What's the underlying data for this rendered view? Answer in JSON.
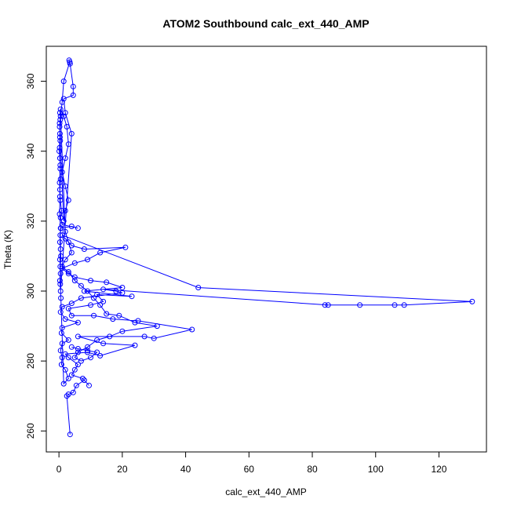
{
  "chart_data": {
    "type": "line",
    "title": "ATOM2 Southbound calc_ext_440_AMP",
    "xlabel": "calc_ext_440_AMP",
    "ylabel": "Theta (K)",
    "xlim": [
      -4,
      135
    ],
    "ylim": [
      254,
      370
    ],
    "grid": false,
    "legend": "none",
    "marker": "open-circle",
    "color": "#0000ff",
    "xticks": [
      0,
      20,
      40,
      60,
      80,
      100,
      120
    ],
    "yticks": [
      260,
      280,
      300,
      320,
      340,
      360
    ],
    "series": [
      {
        "points": [
          [
            3.5,
            259
          ],
          [
            2.5,
            270
          ],
          [
            3,
            270.5
          ],
          [
            4.5,
            271
          ],
          [
            5.5,
            273
          ],
          [
            8,
            274.5
          ],
          [
            9.5,
            273
          ],
          [
            7.5,
            275
          ],
          [
            4,
            276
          ],
          [
            5,
            277.5
          ],
          [
            6,
            279
          ],
          [
            3,
            281
          ],
          [
            2,
            282
          ],
          [
            9,
            282.5
          ],
          [
            13,
            281.5
          ],
          [
            24,
            284.5
          ],
          [
            14,
            285
          ],
          [
            6,
            287
          ],
          [
            27,
            287
          ],
          [
            30,
            286.5
          ],
          [
            42,
            289
          ],
          [
            25,
            291.5
          ],
          [
            17,
            292
          ],
          [
            11,
            293
          ],
          [
            4,
            293
          ],
          [
            3,
            295
          ],
          [
            10,
            296
          ],
          [
            14,
            297
          ],
          [
            12,
            299
          ],
          [
            23,
            298.5
          ],
          [
            8,
            300
          ],
          [
            20,
            301
          ],
          [
            15,
            302.5
          ],
          [
            10,
            303
          ],
          [
            5,
            304
          ],
          [
            3,
            305
          ],
          [
            1,
            306.5
          ],
          [
            5,
            308
          ],
          [
            9,
            309
          ],
          [
            13,
            311
          ],
          [
            21,
            312.5
          ],
          [
            8,
            312
          ],
          [
            4,
            313
          ],
          [
            2,
            315
          ],
          [
            1,
            316
          ],
          [
            44,
            301
          ],
          [
            130.5,
            297
          ],
          [
            109,
            296
          ],
          [
            106,
            296
          ],
          [
            95,
            296
          ],
          [
            84,
            296
          ],
          [
            85,
            296
          ],
          [
            14,
            300.5
          ],
          [
            18,
            300
          ],
          [
            20,
            299.5
          ],
          [
            7,
            298
          ],
          [
            4,
            296.5
          ],
          [
            1,
            295.5
          ],
          [
            0.5,
            294
          ],
          [
            2,
            292
          ],
          [
            6,
            291
          ],
          [
            1,
            289.5
          ],
          [
            0.8,
            288
          ],
          [
            3,
            286
          ],
          [
            1,
            285
          ],
          [
            0.5,
            283
          ],
          [
            1,
            281
          ],
          [
            0.8,
            279
          ],
          [
            2,
            277.5
          ],
          [
            3,
            275
          ],
          [
            1.5,
            273.5
          ],
          [
            0.6,
            298
          ],
          [
            0.4,
            302
          ],
          [
            0.5,
            305
          ],
          [
            0.3,
            309
          ],
          [
            0.5,
            312
          ],
          [
            0.4,
            316
          ],
          [
            0.6,
            318
          ],
          [
            4,
            318.5
          ],
          [
            6,
            318
          ],
          [
            1,
            319
          ],
          [
            0.5,
            321
          ],
          [
            0.8,
            323
          ],
          [
            0.4,
            326
          ],
          [
            0.3,
            329
          ],
          [
            0.5,
            332
          ],
          [
            0.4,
            335
          ],
          [
            0.3,
            338
          ],
          [
            0.2,
            341
          ],
          [
            0.4,
            343
          ],
          [
            0.3,
            345
          ],
          [
            0.2,
            347
          ],
          [
            0.4,
            349
          ],
          [
            0.3,
            351
          ],
          [
            0.5,
            352
          ],
          [
            1.5,
            350
          ],
          [
            2.5,
            347
          ],
          [
            3,
            342
          ],
          [
            2,
            338
          ],
          [
            1,
            334
          ],
          [
            2,
            330
          ],
          [
            3,
            326
          ],
          [
            2,
            323
          ],
          [
            1.5,
            320
          ],
          [
            0.2,
            348
          ],
          [
            0.3,
            344
          ],
          [
            0.1,
            340
          ],
          [
            0.4,
            336
          ],
          [
            0.2,
            331
          ],
          [
            0.3,
            327
          ],
          [
            0.2,
            322
          ],
          [
            0.5,
            318
          ],
          [
            0.3,
            314
          ],
          [
            0.6,
            310
          ],
          [
            0.4,
            307
          ],
          [
            0.3,
            303
          ],
          [
            0.5,
            300
          ],
          [
            4,
            345
          ],
          [
            2,
            351
          ],
          [
            1.5,
            355
          ],
          [
            4.5,
            356
          ],
          [
            4.5,
            358.5
          ],
          [
            3.5,
            365
          ],
          [
            3.2,
            366
          ],
          [
            3.4,
            365.5
          ],
          [
            1.5,
            360
          ],
          [
            1,
            354
          ],
          [
            0.5,
            350
          ],
          [
            2,
            317
          ],
          [
            3,
            314
          ],
          [
            4,
            311
          ],
          [
            2,
            309
          ],
          [
            1,
            307
          ],
          [
            3,
            305.5
          ],
          [
            5,
            303
          ],
          [
            7,
            301.5
          ],
          [
            9,
            300
          ],
          [
            11,
            298
          ],
          [
            13,
            296
          ],
          [
            15,
            293.5
          ],
          [
            19,
            293
          ],
          [
            24,
            291
          ],
          [
            31,
            290
          ],
          [
            20,
            288.5
          ],
          [
            16,
            287
          ],
          [
            12,
            286
          ],
          [
            9,
            284
          ],
          [
            6,
            282.5
          ],
          [
            5,
            281
          ],
          [
            7,
            280
          ],
          [
            10,
            281
          ],
          [
            12,
            282.5
          ],
          [
            9,
            283
          ],
          [
            6,
            283.5
          ],
          [
            4,
            284
          ]
        ]
      }
    ]
  }
}
